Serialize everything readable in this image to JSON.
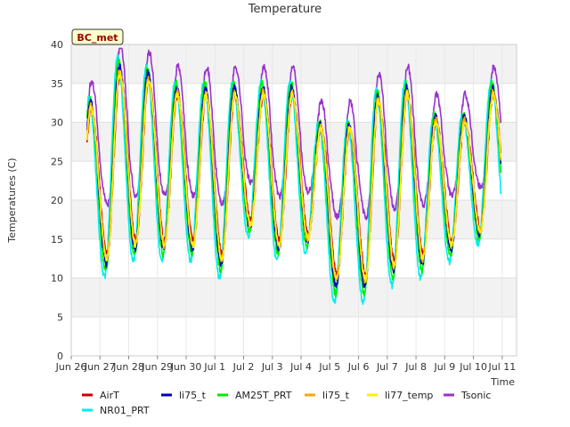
{
  "chart_data": {
    "type": "line",
    "title": "Temperature",
    "xlabel": "Time",
    "ylabel": "Temperatures (C)",
    "badge": "BC_met",
    "ylim": [
      0,
      40
    ],
    "xlim": [
      0,
      15.5
    ],
    "yticks": [
      0,
      5,
      10,
      15,
      20,
      25,
      30,
      35,
      40
    ],
    "xticks": [
      {
        "x": 0,
        "label": "Jun 26"
      },
      {
        "x": 1,
        "label": "Jun 27"
      },
      {
        "x": 2,
        "label": "Jun 28"
      },
      {
        "x": 3,
        "label": "Jun 29"
      },
      {
        "x": 4,
        "label": "Jun 30"
      },
      {
        "x": 5,
        "label": "Jul 1"
      },
      {
        "x": 6,
        "label": "Jul 2"
      },
      {
        "x": 7,
        "label": "Jul 3"
      },
      {
        "x": 8,
        "label": "Jul 4"
      },
      {
        "x": 9,
        "label": "Jul 5"
      },
      {
        "x": 10,
        "label": "Jul 6"
      },
      {
        "x": 11,
        "label": "Jul 7"
      },
      {
        "x": 12,
        "label": "Jul 8"
      },
      {
        "x": 13,
        "label": "Jul 9"
      },
      {
        "x": 14,
        "label": "Jul 10"
      },
      {
        "x": 15,
        "label": "Jul 11"
      }
    ],
    "grid": true,
    "legend_position": "bottom",
    "daily": [
      {
        "day": "Jun 26",
        "max": 33,
        "min": 12
      },
      {
        "day": "Jun 27",
        "max": 38,
        "min": 11
      },
      {
        "day": "Jun 28",
        "max": 37,
        "min": 13
      },
      {
        "day": "Jun 29",
        "max": 35,
        "min": 13
      },
      {
        "day": "Jun 30",
        "max": 35,
        "min": 13
      },
      {
        "day": "Jul 1",
        "max": 35,
        "min": 11
      },
      {
        "day": "Jul 2",
        "max": 35,
        "min": 16
      },
      {
        "day": "Jul 3",
        "max": 35,
        "min": 13
      },
      {
        "day": "Jul 4",
        "max": 30,
        "min": 14
      },
      {
        "day": "Jul 5",
        "max": 30,
        "min": 8
      },
      {
        "day": "Jul 6",
        "max": 34,
        "min": 8
      },
      {
        "day": "Jul 7",
        "max": 35,
        "min": 10
      },
      {
        "day": "Jul 8",
        "max": 31,
        "min": 11
      },
      {
        "day": "Jul 9",
        "max": 31,
        "min": 13
      },
      {
        "day": "Jul 10",
        "max": 35,
        "min": 15
      }
    ],
    "series": [
      {
        "name": "AirT",
        "color": "#cc0000",
        "dx": 0.05,
        "amp": 0.86,
        "off": 1.0
      },
      {
        "name": "li75_t",
        "color": "#0000bb",
        "dx": 0.02,
        "amp": 0.95,
        "off": 0.5
      },
      {
        "name": "AM25T_PRT",
        "color": "#00ee00",
        "dx": 0.0,
        "amp": 1.0,
        "off": 0.0
      },
      {
        "name": "li75_t",
        "color": "#ffa500",
        "dx": 0.03,
        "amp": 0.9,
        "off": 0.6
      },
      {
        "name": "li77_temp",
        "color": "#ffee00",
        "dx": 0.04,
        "amp": 0.88,
        "off": 0.3
      },
      {
        "name": "Tsonic",
        "color": "#9932cc",
        "dx": 0.06,
        "amp": 0.6,
        "off": 9.0
      },
      {
        "name": "NR01_PRT",
        "color": "#00eeee",
        "dx": -0.04,
        "amp": 1.04,
        "off": -1.0
      }
    ]
  }
}
